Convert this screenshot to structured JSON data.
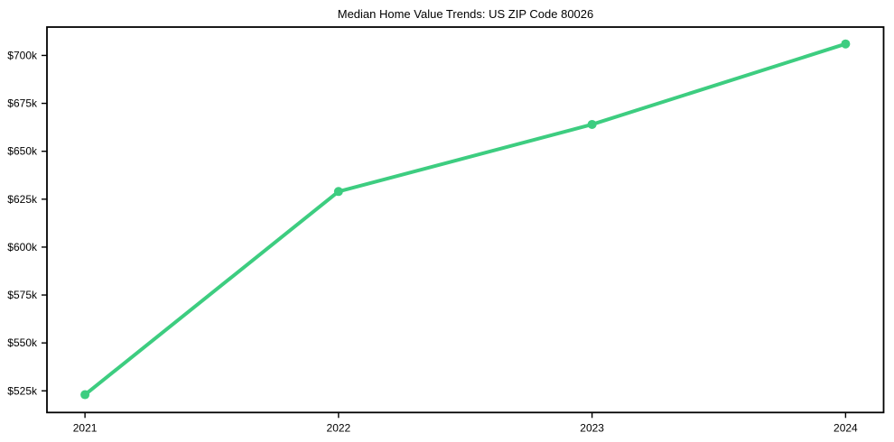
{
  "window": {
    "background": "#ffffff"
  },
  "chart_data": {
    "type": "line",
    "title": "Median Home Value Trends: US ZIP Code 80026",
    "x": [
      2021,
      2022,
      2023,
      2024
    ],
    "x_tick_labels": [
      "2021",
      "2022",
      "2023",
      "2024"
    ],
    "series": [
      {
        "name": "median-home-value",
        "values": [
          523000,
          629000,
          664000,
          706000
        ],
        "color": "#3dcd80",
        "marker": "circle",
        "line_width": 4,
        "marker_radius": 5
      }
    ],
    "y_ticks": [
      525000,
      550000,
      575000,
      600000,
      625000,
      650000,
      675000,
      700000
    ],
    "y_tick_labels": [
      "$525k",
      "$550k",
      "$575k",
      "$600k",
      "$625k",
      "$650k",
      "$675k",
      "$700k"
    ],
    "xlim": [
      2020.85,
      2024.15
    ],
    "ylim": [
      513700,
      714800
    ],
    "xlabel": "",
    "ylabel": "",
    "grid": false,
    "legend": "none",
    "axis_color": "#000000",
    "tick_label_color": "#000000",
    "title_color": "#000000"
  }
}
